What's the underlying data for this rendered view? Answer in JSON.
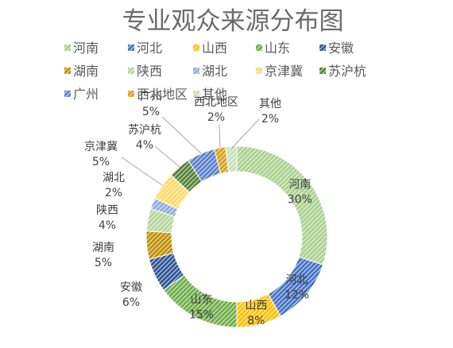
{
  "chart_data": {
    "type": "pie",
    "variant": "doughnut",
    "title": "专业观众来源分布图",
    "legend_position": "top",
    "categories": [
      "河南",
      "河北",
      "山西",
      "山东",
      "安徽",
      "湖南",
      "陕西",
      "湖北",
      "京津冀",
      "苏沪杭",
      "广州",
      "西北地区",
      "其他"
    ],
    "values": [
      30,
      12,
      8,
      15,
      6,
      5,
      4,
      2,
      5,
      4,
      5,
      2,
      2
    ],
    "data_labels": [
      "30%",
      "12%",
      "8%",
      "15%",
      "6%",
      "5%",
      "4%",
      "2%",
      "5%",
      "4%",
      "5%",
      "2%",
      "2%"
    ],
    "colors": [
      "#A9D18E",
      "#4472C4",
      "#FFC000",
      "#70AD47",
      "#2F5597",
      "#BF9000",
      "#B5D69A",
      "#8FAADC",
      "#FFD966",
      "#548235",
      "#5A7FCB",
      "#D4A017",
      "#C5E0B4"
    ]
  }
}
